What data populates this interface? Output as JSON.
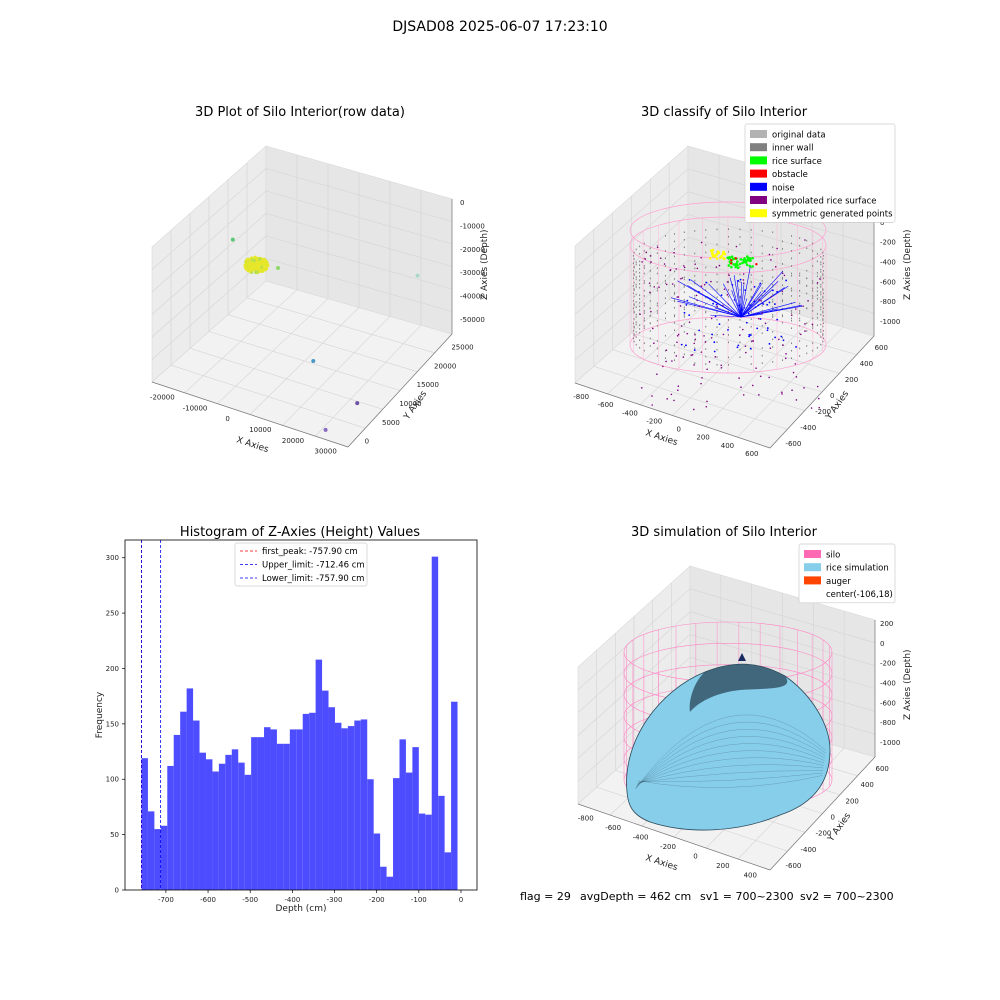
{
  "suptitle": "DJSAD08 2025-06-07 17:23:10",
  "status": {
    "flag": "flag = 29",
    "avgDepth": "avgDepth = 462 cm",
    "sv1": "sv1 = 700~2300",
    "sv2": "sv2 = 700~2300"
  },
  "colors": {
    "original": "#b3b3b3",
    "inner_wall": "#808080",
    "rice_surface": "#00ff00",
    "obstacle": "#ff0000",
    "noise": "#0000ff",
    "interpolated": "#800080",
    "symmetric": "#ffff00",
    "silo": "#ff69b4",
    "rice_sim": "#87ceeb",
    "auger": "#ff4500",
    "hist_bar": "#4d4dff"
  },
  "chart_data": [
    {
      "type": "scatter3d",
      "title": "3D Plot of Silo Interior(row data)",
      "xlabel": "X Axies",
      "ylabel": "Y Axies",
      "zlabel": "Z Axies (Depth)",
      "xticks": [
        "-20000",
        "-10000",
        "0",
        "10000",
        "20000",
        "30000"
      ],
      "yticks": [
        "0",
        "5000",
        "10000",
        "15000",
        "20000",
        "25000"
      ],
      "zticks": [
        "0",
        "-10000",
        "-20000",
        "-30000",
        "-40000",
        "-50000"
      ],
      "outliers": [
        {
          "x": -24000,
          "y": 20000,
          "z": -9000
        },
        {
          "x": 28000,
          "y": 24000,
          "z": -3000
        },
        {
          "x": 12000,
          "y": 10000,
          "z": -38000
        },
        {
          "x": 30000,
          "y": 6000,
          "z": -45000
        },
        {
          "x": 26000,
          "y": 1000,
          "z": -55000
        }
      ]
    },
    {
      "type": "scatter3d",
      "title": "3D classify of Silo Interior",
      "xlabel": "X Axies",
      "ylabel": "Y Axies",
      "zlabel": "Z Axies (Depth)",
      "xticks": [
        "-800",
        "-600",
        "-400",
        "-200",
        "0",
        "200",
        "400",
        "600"
      ],
      "yticks": [
        "-600",
        "-400",
        "-200",
        "0",
        "200",
        "400",
        "600"
      ],
      "zticks": [
        "200",
        "0",
        "-200",
        "-400",
        "-600",
        "-800",
        "-1000"
      ],
      "legend_position": "top-right",
      "legend": [
        {
          "label": "original data",
          "color": "#b3b3b3"
        },
        {
          "label": "inner wall",
          "color": "#808080"
        },
        {
          "label": "rice surface",
          "color": "#00ff00"
        },
        {
          "label": "obstacle",
          "color": "#ff0000"
        },
        {
          "label": "noise",
          "color": "#0000ff"
        },
        {
          "label": "interpolated rice surface",
          "color": "#800080"
        },
        {
          "label": "symmetric generated points",
          "color": "#ffff00"
        }
      ]
    },
    {
      "type": "bar",
      "title": "Histogram of Z-Axies (Height) Values",
      "xlabel": "Depth (cm)",
      "ylabel": "Frequency",
      "xlim": [
        -797,
        38
      ],
      "ylim": [
        0,
        316
      ],
      "xticks": [
        -700,
        -600,
        -500,
        -400,
        -300,
        -200,
        -100,
        0
      ],
      "yticks": [
        0,
        50,
        100,
        150,
        200,
        250,
        300
      ],
      "bin_start": -757.9,
      "bin_width": 15.3,
      "values": [
        119,
        71,
        55,
        58,
        112,
        140,
        161,
        182,
        153,
        124,
        118,
        107,
        114,
        122,
        127,
        115,
        104,
        138,
        138,
        147,
        145,
        132,
        132,
        145,
        145,
        159,
        160,
        208,
        180,
        165,
        151,
        146,
        148,
        153,
        154,
        100,
        51,
        21,
        12,
        101,
        136,
        106,
        129,
        69,
        68,
        301,
        85,
        34,
        170
      ],
      "vlines": [
        {
          "label": "first_peak: -757.90 cm",
          "x": -757.9,
          "color": "#ff0000"
        },
        {
          "label": "Upper_limit: -712.46 cm",
          "x": -712.46,
          "color": "#0000ff"
        },
        {
          "label": "Lower_limit: -757.90 cm",
          "x": -757.9,
          "color": "#0000ff"
        }
      ],
      "legend_position": "top-center"
    },
    {
      "type": "surface3d",
      "title": "3D simulation of Silo Interior",
      "xlabel": "X Axies",
      "ylabel": "Y Axies",
      "zlabel": "Z Axies (Depth)",
      "xticks": [
        "-800",
        "-600",
        "-400",
        "-200",
        "0",
        "200",
        "400"
      ],
      "yticks": [
        "-600",
        "-400",
        "-200",
        "0",
        "200",
        "400",
        "600"
      ],
      "zticks": [
        "200",
        "0",
        "-200",
        "-400",
        "-600",
        "-800",
        "-1000"
      ],
      "legend_position": "top-right",
      "legend": [
        {
          "label": "silo",
          "color": "#ff69b4"
        },
        {
          "label": "rice simulation",
          "color": "#87ceeb"
        },
        {
          "label": "auger",
          "color": "#ff4500"
        },
        {
          "label": "center(-106,18)",
          "color": ""
        }
      ]
    }
  ]
}
